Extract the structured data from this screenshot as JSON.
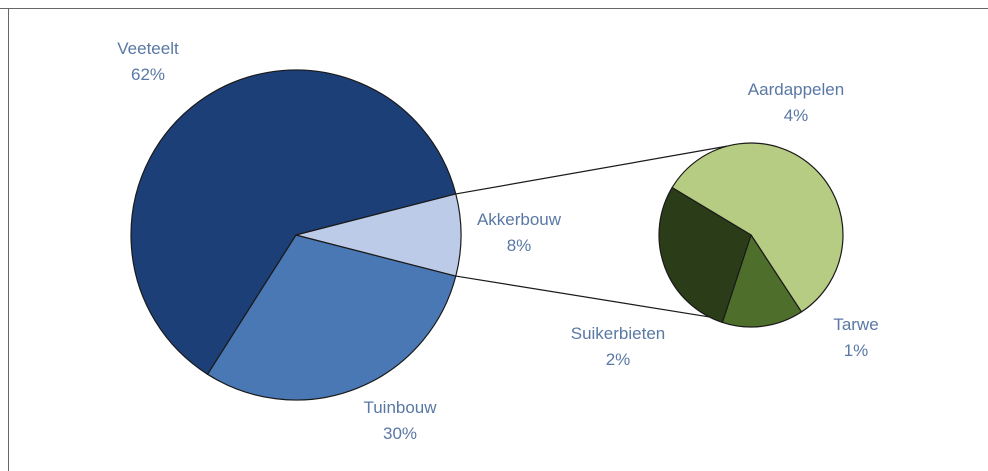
{
  "chart_data": [
    {
      "type": "pie",
      "categories": [
        "Veeteelt",
        "Tuinbouw",
        "Akkerbouw"
      ],
      "values": [
        62,
        30,
        8
      ],
      "value_labels": [
        "62%",
        "30%",
        "8%"
      ],
      "colors": [
        "#1c3f78",
        "#4a78b4",
        "#bccbe8"
      ],
      "title": ""
    },
    {
      "type": "pie",
      "categories": [
        "Aardappelen",
        "Tarwe",
        "Suikerbieten"
      ],
      "values": [
        4,
        1,
        2
      ],
      "value_labels": [
        "4%",
        "1%",
        "2%"
      ],
      "colors": [
        "#b6cc82",
        "#4e6e2c",
        "#2a3d18"
      ],
      "title": ""
    }
  ]
}
